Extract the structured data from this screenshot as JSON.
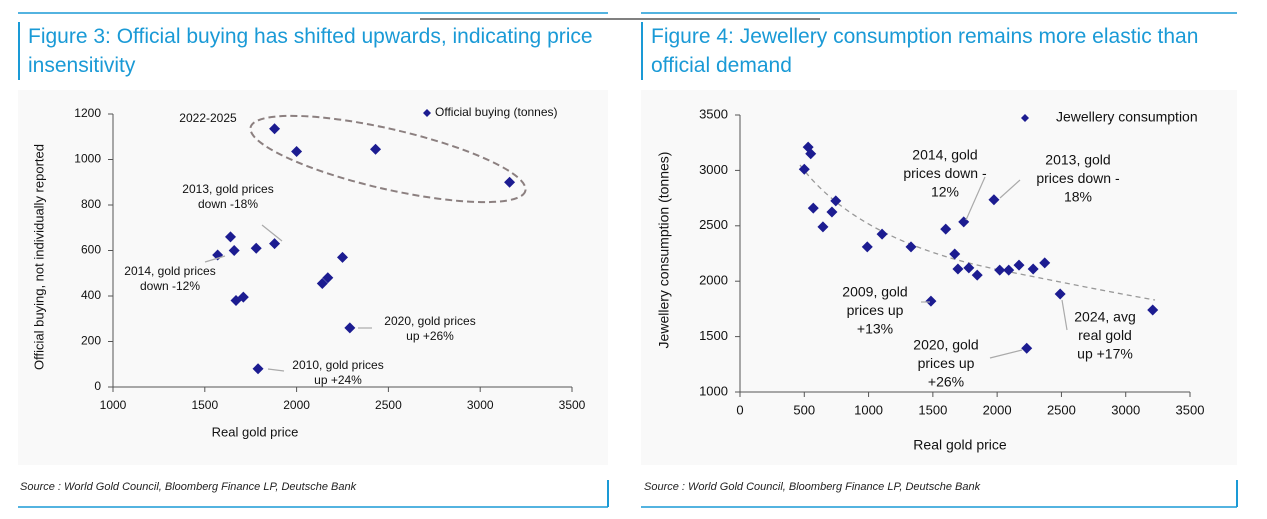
{
  "chart_data": [
    {
      "type": "scatter",
      "title": "Figure 3: Official buying has shifted upwards, indicating price insensitivity",
      "source": "Source : World Gold Council, Bloomberg Finance LP, Deutsche Bank",
      "x_label": "Real gold price",
      "y_label": "Official buying, not individually reported",
      "xlim": [
        1000,
        3500
      ],
      "xticks": [
        1000,
        1500,
        2000,
        2500,
        3000,
        3500
      ],
      "ylim": [
        0,
        1200
      ],
      "yticks": [
        0,
        200,
        400,
        600,
        800,
        1000,
        1200
      ],
      "legend": "top-right",
      "series": [
        {
          "name": "Official buying (tonnes)",
          "color": "#1c1c91",
          "x": [
            1880,
            2000,
            2430,
            3160,
            1640,
            1570,
            1660,
            1780,
            1880,
            2250,
            2170,
            2140,
            1670,
            1710,
            2290,
            1790
          ],
          "values": [
            1135,
            1035,
            1045,
            900,
            660,
            580,
            600,
            610,
            630,
            570,
            480,
            455,
            380,
            395,
            260,
            80
          ]
        }
      ],
      "annotations": [
        [
          "2022-2025"
        ],
        [
          "2013, gold prices",
          "down -18%"
        ],
        [
          "2014, gold prices",
          "down -12%"
        ],
        [
          "2020, gold prices",
          "up +26%"
        ],
        [
          "2010, gold prices",
          "up +24%"
        ]
      ]
    },
    {
      "type": "scatter",
      "title": "Figure 4: Jewellery consumption remains more elastic than official demand",
      "source": "Source : World Gold Council, Bloomberg Finance LP, Deutsche Bank",
      "x_label": "Real gold price",
      "y_label": "Jewellery consumption (tonnes)",
      "xlim": [
        0,
        3500
      ],
      "xticks": [
        0,
        500,
        1000,
        1500,
        2000,
        2500,
        3000,
        3500
      ],
      "ylim": [
        1000,
        3500
      ],
      "yticks": [
        1000,
        1500,
        2000,
        2500,
        3000,
        3500
      ],
      "legend": "top-right",
      "series": [
        {
          "name": "Jewellery consumption",
          "color": "#1c1c91",
          "x": [
            500,
            530,
            550,
            570,
            645,
            715,
            745,
            990,
            1105,
            1330,
            1485,
            1600,
            1670,
            1740,
            1695,
            1780,
            1845,
            1975,
            2020,
            2090,
            2170,
            2280,
            2370,
            2490,
            2230,
            3210
          ],
          "values": [
            3010,
            3210,
            3150,
            2660,
            2490,
            2625,
            2725,
            2310,
            2425,
            2310,
            1820,
            2470,
            2245,
            2535,
            2110,
            2120,
            2055,
            2735,
            2100,
            2100,
            2145,
            2110,
            2165,
            1885,
            1395,
            1740
          ]
        }
      ],
      "annotations": [
        [
          "2014, gold",
          "prices down -",
          "12%"
        ],
        [
          "2013, gold",
          "prices down -",
          "18%"
        ],
        [
          "2009, gold",
          "prices up",
          "+13%"
        ],
        [
          "2020, gold",
          "prices up",
          "+26%"
        ],
        [
          "2024, avg",
          "real gold",
          "up +17%"
        ]
      ]
    }
  ]
}
